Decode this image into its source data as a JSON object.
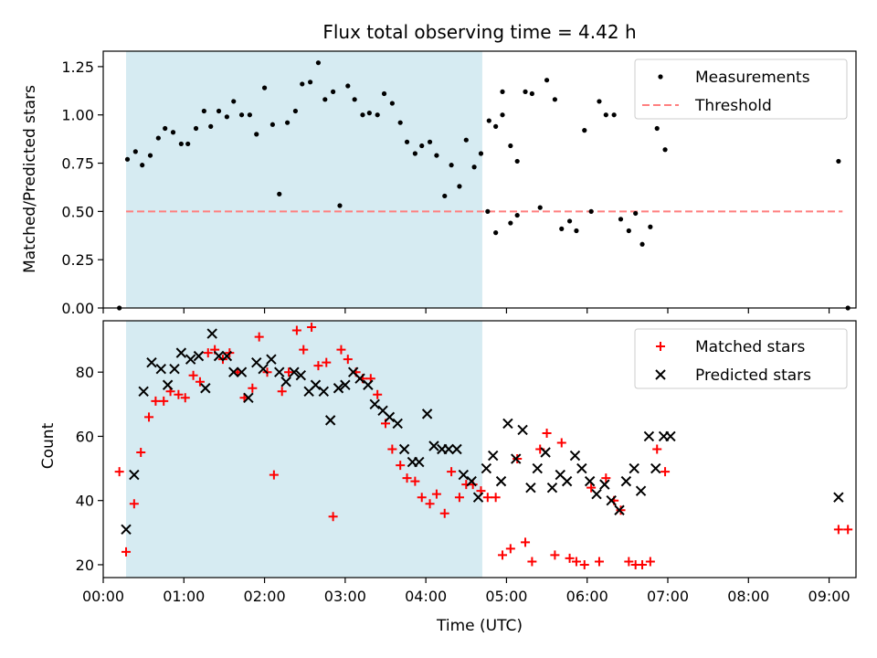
{
  "chart_data": [
    {
      "type": "scatter",
      "title": "Flux total observing time = 4.42 h",
      "xlabel": "",
      "ylabel": "Matched/Predicted stars",
      "xlim": [
        "00:00",
        "09:20"
      ],
      "ylim": [
        0,
        1.33
      ],
      "yticks": [
        "0.00",
        "0.25",
        "0.50",
        "0.75",
        "1.00",
        "1.25"
      ],
      "shaded_interval": [
        "00:17",
        "04:42"
      ],
      "legend": {
        "position": "top-right",
        "entries": [
          "Measurements",
          "Threshold"
        ]
      },
      "threshold": {
        "name": "Threshold",
        "value": 0.5,
        "x": [
          "00:17",
          "09:10"
        ],
        "color": "#ff7f7f"
      },
      "series": [
        {
          "name": "Measurements",
          "color": "#000000",
          "points": [
            [
              "00:12",
              0.0
            ],
            [
              "00:18",
              0.77
            ],
            [
              "00:24",
              0.81
            ],
            [
              "00:29",
              0.74
            ],
            [
              "00:35",
              0.79
            ],
            [
              "00:41",
              0.88
            ],
            [
              "00:46",
              0.93
            ],
            [
              "00:52",
              0.91
            ],
            [
              "00:58",
              0.85
            ],
            [
              "01:03",
              0.85
            ],
            [
              "01:09",
              0.93
            ],
            [
              "01:15",
              1.02
            ],
            [
              "01:20",
              0.94
            ],
            [
              "01:26",
              1.02
            ],
            [
              "01:32",
              0.99
            ],
            [
              "01:37",
              1.07
            ],
            [
              "01:43",
              1.0
            ],
            [
              "01:49",
              1.0
            ],
            [
              "01:54",
              0.9
            ],
            [
              "02:00",
              1.14
            ],
            [
              "02:06",
              0.95
            ],
            [
              "02:11",
              0.59
            ],
            [
              "02:17",
              0.96
            ],
            [
              "02:23",
              1.02
            ],
            [
              "02:28",
              1.16
            ],
            [
              "02:34",
              1.17
            ],
            [
              "02:40",
              1.27
            ],
            [
              "02:45",
              1.08
            ],
            [
              "02:51",
              1.12
            ],
            [
              "02:56",
              0.53
            ],
            [
              "03:02",
              1.15
            ],
            [
              "03:07",
              1.08
            ],
            [
              "03:13",
              1.0
            ],
            [
              "03:18",
              1.01
            ],
            [
              "03:24",
              1.0
            ],
            [
              "03:29",
              1.11
            ],
            [
              "03:35",
              1.06
            ],
            [
              "03:41",
              0.96
            ],
            [
              "03:46",
              0.86
            ],
            [
              "03:52",
              0.8
            ],
            [
              "03:57",
              0.84
            ],
            [
              "04:03",
              0.86
            ],
            [
              "04:08",
              0.79
            ],
            [
              "04:14",
              0.58
            ],
            [
              "04:19",
              0.74
            ],
            [
              "04:25",
              0.63
            ],
            [
              "04:30",
              0.87
            ],
            [
              "04:36",
              0.73
            ],
            [
              "04:41",
              0.8
            ],
            [
              "04:47",
              0.97
            ],
            [
              "04:52",
              0.94
            ],
            [
              "04:57",
              1.12
            ],
            [
              "05:03",
              0.84
            ],
            [
              "05:08",
              0.76
            ],
            [
              "04:46",
              0.5
            ],
            [
              "04:52",
              0.39
            ],
            [
              "04:57",
              1.0
            ],
            [
              "05:03",
              0.44
            ],
            [
              "05:08",
              0.48
            ],
            [
              "05:14",
              1.12
            ],
            [
              "05:19",
              1.11
            ],
            [
              "05:25",
              0.52
            ],
            [
              "05:30",
              1.18
            ],
            [
              "05:36",
              1.08
            ],
            [
              "05:41",
              0.41
            ],
            [
              "05:47",
              0.45
            ],
            [
              "05:52",
              0.4
            ],
            [
              "05:58",
              0.92
            ],
            [
              "06:03",
              0.5
            ],
            [
              "06:09",
              1.07
            ],
            [
              "06:14",
              1.0
            ],
            [
              "06:20",
              1.0
            ],
            [
              "06:25",
              0.46
            ],
            [
              "06:31",
              0.4
            ],
            [
              "06:36",
              0.49
            ],
            [
              "06:41",
              0.33
            ],
            [
              "06:47",
              0.42
            ],
            [
              "06:52",
              0.93
            ],
            [
              "06:58",
              0.82
            ],
            [
              "09:07",
              0.76
            ],
            [
              "09:14",
              0.0
            ]
          ]
        }
      ]
    },
    {
      "type": "scatter",
      "title": "",
      "xlabel": "Time (UTC)",
      "ylabel": "Count",
      "xlim": [
        "00:00",
        "09:20"
      ],
      "ylim": [
        16,
        96
      ],
      "yticks": [
        "20",
        "40",
        "60",
        "80"
      ],
      "xticks": [
        "00:00",
        "01:00",
        "02:00",
        "03:00",
        "04:00",
        "05:00",
        "06:00",
        "07:00",
        "08:00",
        "09:00"
      ],
      "shaded_interval": [
        "00:17",
        "04:42"
      ],
      "legend": {
        "position": "top-right",
        "entries": [
          "Matched stars",
          "Predicted stars"
        ]
      },
      "series": [
        {
          "name": "Matched stars",
          "color": "#ff0000",
          "points": [
            [
              "00:12",
              49
            ],
            [
              "00:17",
              24
            ],
            [
              "00:23",
              39
            ],
            [
              "00:28",
              55
            ],
            [
              "00:34",
              66
            ],
            [
              "00:39",
              71
            ],
            [
              "00:45",
              71
            ],
            [
              "00:50",
              74
            ],
            [
              "00:56",
              73
            ],
            [
              "01:01",
              72
            ],
            [
              "01:07",
              79
            ],
            [
              "01:12",
              77
            ],
            [
              "01:18",
              86
            ],
            [
              "01:23",
              87
            ],
            [
              "01:29",
              84
            ],
            [
              "01:34",
              86
            ],
            [
              "01:40",
              80
            ],
            [
              "01:45",
              72
            ],
            [
              "01:51",
              75
            ],
            [
              "01:56",
              91
            ],
            [
              "02:02",
              80
            ],
            [
              "02:07",
              48
            ],
            [
              "02:13",
              74
            ],
            [
              "02:18",
              80
            ],
            [
              "02:24",
              93
            ],
            [
              "02:29",
              87
            ],
            [
              "02:35",
              94
            ],
            [
              "02:40",
              82
            ],
            [
              "02:46",
              83
            ],
            [
              "02:51",
              35
            ],
            [
              "02:57",
              87
            ],
            [
              "03:02",
              84
            ],
            [
              "03:08",
              80
            ],
            [
              "03:13",
              78
            ],
            [
              "03:19",
              78
            ],
            [
              "03:24",
              73
            ],
            [
              "03:30",
              64
            ],
            [
              "03:35",
              56
            ],
            [
              "03:41",
              51
            ],
            [
              "03:46",
              47
            ],
            [
              "03:52",
              46
            ],
            [
              "03:57",
              41
            ],
            [
              "04:03",
              39
            ],
            [
              "04:08",
              42
            ],
            [
              "04:14",
              36
            ],
            [
              "04:19",
              49
            ],
            [
              "04:25",
              41
            ],
            [
              "04:30",
              45
            ],
            [
              "04:35",
              45
            ],
            [
              "04:41",
              43
            ],
            [
              "04:46",
              41
            ],
            [
              "04:52",
              41
            ],
            [
              "04:57",
              23
            ],
            [
              "05:03",
              25
            ],
            [
              "05:08",
              53
            ],
            [
              "05:14",
              27
            ],
            [
              "05:19",
              21
            ],
            [
              "05:25",
              56
            ],
            [
              "05:30",
              61
            ],
            [
              "05:36",
              23
            ],
            [
              "05:41",
              58
            ],
            [
              "05:47",
              22
            ],
            [
              "05:52",
              21
            ],
            [
              "05:58",
              20
            ],
            [
              "06:03",
              44
            ],
            [
              "06:09",
              21
            ],
            [
              "06:14",
              47
            ],
            [
              "06:20",
              40
            ],
            [
              "06:25",
              37
            ],
            [
              "06:31",
              21
            ],
            [
              "06:36",
              20
            ],
            [
              "06:41",
              20
            ],
            [
              "06:47",
              21
            ],
            [
              "06:52",
              56
            ],
            [
              "06:58",
              49
            ],
            [
              "09:07",
              31
            ],
            [
              "09:14",
              31
            ]
          ]
        },
        {
          "name": "Predicted stars",
          "color": "#000000",
          "points": [
            [
              "00:17",
              31
            ],
            [
              "00:23",
              48
            ],
            [
              "00:30",
              74
            ],
            [
              "00:36",
              83
            ],
            [
              "00:43",
              81
            ],
            [
              "00:48",
              76
            ],
            [
              "00:53",
              81
            ],
            [
              "00:58",
              86
            ],
            [
              "01:05",
              84
            ],
            [
              "01:11",
              85
            ],
            [
              "01:16",
              75
            ],
            [
              "01:21",
              92
            ],
            [
              "01:26",
              85
            ],
            [
              "01:32",
              85
            ],
            [
              "01:37",
              80
            ],
            [
              "01:43",
              80
            ],
            [
              "01:48",
              72
            ],
            [
              "01:54",
              83
            ],
            [
              "01:59",
              81
            ],
            [
              "02:05",
              84
            ],
            [
              "02:11",
              80
            ],
            [
              "02:16",
              77
            ],
            [
              "02:22",
              80
            ],
            [
              "02:27",
              79
            ],
            [
              "02:33",
              74
            ],
            [
              "02:38",
              76
            ],
            [
              "02:44",
              74
            ],
            [
              "02:49",
              65
            ],
            [
              "02:55",
              75
            ],
            [
              "03:00",
              76
            ],
            [
              "03:06",
              80
            ],
            [
              "03:11",
              78
            ],
            [
              "03:17",
              76
            ],
            [
              "03:22",
              70
            ],
            [
              "03:28",
              68
            ],
            [
              "03:33",
              66
            ],
            [
              "03:39",
              64
            ],
            [
              "03:44",
              56
            ],
            [
              "03:50",
              52
            ],
            [
              "03:55",
              52
            ],
            [
              "04:01",
              67
            ],
            [
              "04:06",
              57
            ],
            [
              "04:12",
              56
            ],
            [
              "04:17",
              56
            ],
            [
              "04:23",
              56
            ],
            [
              "04:28",
              48
            ],
            [
              "04:34",
              46
            ],
            [
              "04:39",
              41
            ],
            [
              "04:45",
              50
            ],
            [
              "04:50",
              54
            ],
            [
              "04:56",
              46
            ],
            [
              "05:01",
              64
            ],
            [
              "05:07",
              53
            ],
            [
              "05:12",
              62
            ],
            [
              "05:18",
              44
            ],
            [
              "05:23",
              50
            ],
            [
              "05:29",
              55
            ],
            [
              "05:34",
              44
            ],
            [
              "05:40",
              48
            ],
            [
              "05:45",
              46
            ],
            [
              "05:51",
              54
            ],
            [
              "05:56",
              50
            ],
            [
              "06:02",
              46
            ],
            [
              "06:07",
              42
            ],
            [
              "06:13",
              45
            ],
            [
              "06:18",
              40
            ],
            [
              "06:24",
              37
            ],
            [
              "06:29",
              46
            ],
            [
              "06:35",
              50
            ],
            [
              "06:40",
              43
            ],
            [
              "06:46",
              60
            ],
            [
              "06:51",
              50
            ],
            [
              "06:57",
              60
            ],
            [
              "07:02",
              60
            ],
            [
              "09:07",
              41
            ]
          ]
        }
      ]
    }
  ]
}
